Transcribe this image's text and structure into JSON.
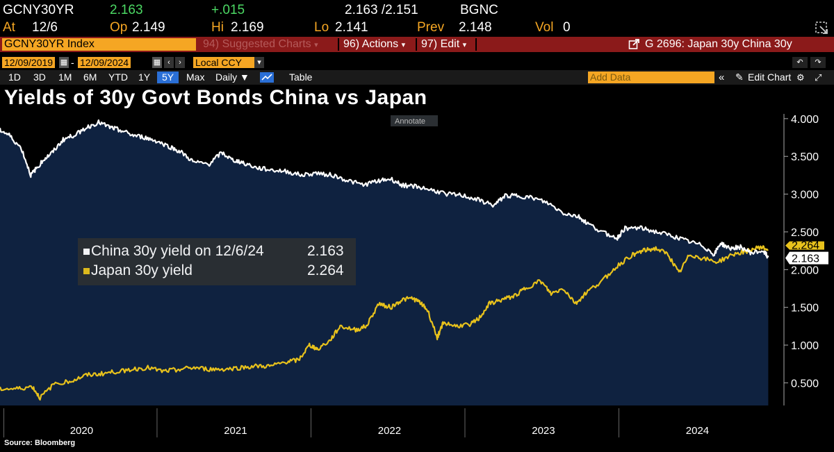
{
  "quote_line": {
    "ticker": "GCNY30YR",
    "last": "2.163",
    "change": "+.015",
    "bid_ask": "2.163 /2.151",
    "source_code": "BGNC"
  },
  "stats_line": {
    "at_label": "At",
    "at_value": "12/6",
    "op_label": "Op",
    "op_value": "2.149",
    "hi_label": "Hi",
    "hi_value": "2.169",
    "lo_label": "Lo",
    "lo_value": "2.141",
    "prev_label": "Prev",
    "prev_value": "2.148",
    "vol_label": "Vol",
    "vol_value": "0"
  },
  "toolbar": {
    "index_field": "GCNY30YR Index",
    "suggested": "94) Suggested Charts",
    "actions": "96) Actions",
    "edit": "97) Edit",
    "chart_id": "G 2696: Japan 30y China 30y"
  },
  "range_bar": {
    "start_date": "12/09/2019",
    "dash": "-",
    "end_date": "12/09/2024",
    "currency": "Local CCY"
  },
  "period_bar": {
    "periods": [
      "1D",
      "3D",
      "1M",
      "6M",
      "YTD",
      "1Y",
      "5Y",
      "Max"
    ],
    "active_period": "5Y",
    "frequency": "Daily ▼",
    "table": "Table",
    "add_data_placeholder": "Add Data",
    "edit_chart": "Edit Chart"
  },
  "chart_title": "Yields of 30y Govt Bonds China vs Japan",
  "annotate_label": "Annotate",
  "source": "Source: Bloomberg",
  "colors": {
    "china": "#ffffff",
    "japan": "#e8c21c",
    "plot_bg": "#0f2240",
    "orange": "#f5a623",
    "menu_red": "#8b1a1a"
  },
  "legend": {
    "china_label": "China 30y yield on 12/6/24",
    "china_value": "2.163",
    "japan_label": "Japan 30y yield",
    "japan_value": "2.264"
  },
  "chart_data": {
    "type": "line",
    "title": "Yields of 30y Govt Bonds China vs Japan",
    "ylim": [
      0.2,
      4.1
    ],
    "y_ticks": [
      "4.000",
      "3.500",
      "3.000",
      "2.500",
      "2.000",
      "1.500",
      "1.000",
      "0.500"
    ],
    "y_tick_values": [
      4.0,
      3.5,
      3.0,
      2.5,
      2.0,
      1.5,
      1.0,
      0.5
    ],
    "x_labels": [
      "2020",
      "2021",
      "2022",
      "2023",
      "2024"
    ],
    "xlim": [
      2019.94,
      2024.96
    ],
    "last_labels": {
      "china": "2.163",
      "japan": "2.264"
    },
    "series": [
      {
        "name": "China 30y yield",
        "x": [
          2019.94,
          2020.0,
          2020.08,
          2020.14,
          2020.18,
          2020.22,
          2020.28,
          2020.35,
          2020.42,
          2020.5,
          2020.58,
          2020.66,
          2020.72,
          2020.8,
          2020.88,
          2020.96,
          2021.05,
          2021.12,
          2021.2,
          2021.3,
          2021.38,
          2021.45,
          2021.52,
          2021.6,
          2021.7,
          2021.8,
          2021.9,
          2022.0,
          2022.1,
          2022.2,
          2022.3,
          2022.4,
          2022.48,
          2022.55,
          2022.65,
          2022.75,
          2022.85,
          2022.95,
          2023.05,
          2023.15,
          2023.22,
          2023.3,
          2023.4,
          2023.5,
          2023.6,
          2023.7,
          2023.75,
          2023.85,
          2023.95,
          2024.0,
          2024.1,
          2024.2,
          2024.3,
          2024.4,
          2024.5,
          2024.58,
          2024.62,
          2024.68,
          2024.75,
          2024.82,
          2024.9,
          2024.93
        ],
        "values": [
          3.85,
          3.78,
          3.6,
          3.25,
          3.35,
          3.45,
          3.55,
          3.72,
          3.78,
          3.88,
          3.95,
          3.88,
          3.85,
          3.78,
          3.75,
          3.7,
          3.62,
          3.55,
          3.42,
          3.4,
          3.55,
          3.45,
          3.42,
          3.35,
          3.32,
          3.3,
          3.25,
          3.28,
          3.25,
          3.18,
          3.12,
          3.18,
          3.2,
          3.12,
          3.1,
          3.05,
          3.0,
          2.98,
          2.92,
          2.85,
          2.98,
          2.98,
          2.95,
          2.88,
          2.75,
          2.7,
          2.62,
          2.5,
          2.42,
          2.55,
          2.55,
          2.5,
          2.45,
          2.38,
          2.32,
          2.2,
          2.35,
          2.28,
          2.3,
          2.22,
          2.25,
          2.163
        ]
      },
      {
        "name": "Japan 30y yield",
        "x": [
          2019.94,
          2020.05,
          2020.15,
          2020.2,
          2020.3,
          2020.4,
          2020.5,
          2020.6,
          2020.7,
          2020.8,
          2020.9,
          2021.0,
          2021.1,
          2021.2,
          2021.3,
          2021.4,
          2021.5,
          2021.6,
          2021.7,
          2021.8,
          2021.88,
          2021.95,
          2022.0,
          2022.08,
          2022.15,
          2022.25,
          2022.32,
          2022.4,
          2022.48,
          2022.55,
          2022.62,
          2022.68,
          2022.72,
          2022.78,
          2022.82,
          2022.9,
          2023.0,
          2023.05,
          2023.12,
          2023.2,
          2023.28,
          2023.35,
          2023.45,
          2023.52,
          2023.6,
          2023.68,
          2023.75,
          2023.85,
          2023.95,
          2024.05,
          2024.12,
          2024.2,
          2024.28,
          2024.35,
          2024.42,
          2024.5,
          2024.6,
          2024.7,
          2024.8,
          2024.88,
          2024.93
        ],
        "values": [
          0.42,
          0.42,
          0.45,
          0.3,
          0.5,
          0.52,
          0.6,
          0.62,
          0.65,
          0.68,
          0.7,
          0.65,
          0.68,
          0.7,
          0.68,
          0.68,
          0.7,
          0.72,
          0.72,
          0.78,
          0.8,
          1.0,
          0.95,
          1.05,
          1.25,
          1.2,
          1.25,
          1.55,
          1.5,
          1.6,
          1.62,
          1.55,
          1.45,
          1.1,
          1.3,
          1.25,
          1.28,
          1.35,
          1.55,
          1.6,
          1.65,
          1.75,
          1.85,
          1.68,
          1.75,
          1.55,
          1.7,
          1.85,
          2.05,
          2.2,
          2.25,
          2.28,
          2.2,
          1.95,
          2.2,
          2.15,
          2.1,
          2.2,
          2.25,
          2.3,
          2.264
        ]
      }
    ]
  }
}
